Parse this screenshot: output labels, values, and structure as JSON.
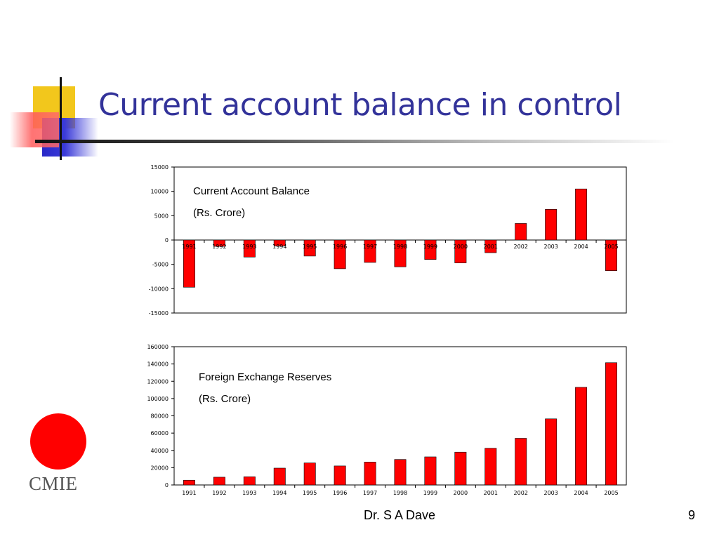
{
  "slide": {
    "title": "Current account balance in control",
    "author": "Dr. S A Dave",
    "page_number": "9",
    "logo_text": "CMIE"
  },
  "colors": {
    "title": "#33339a",
    "bar_fill": "#ff0000",
    "bar_stroke": "#000000",
    "logo_circle": "#ff0000",
    "deco_yellow": "#f2c71c",
    "deco_blue": "#2828c8",
    "deco_red": "#ff5b5b"
  },
  "chart_data": [
    {
      "type": "bar",
      "annotation": [
        "Current Account Balance",
        "(Rs. Crore)"
      ],
      "categories": [
        "1991",
        "1992",
        "1993",
        "1994",
        "1995",
        "1996",
        "1997",
        "1998",
        "1999",
        "2000",
        "2001",
        "2002",
        "2003",
        "2004",
        "2005"
      ],
      "values": [
        -9700,
        -1300,
        -3500,
        -1200,
        -3300,
        -5900,
        -4600,
        -5500,
        -4000,
        -4700,
        -2600,
        3400,
        6300,
        10500,
        -6300
      ],
      "ylim": [
        -15000,
        15000
      ],
      "yticks": [
        -15000,
        -10000,
        -5000,
        0,
        5000,
        10000,
        15000
      ],
      "xlabel": "",
      "ylabel": "",
      "legend": "none"
    },
    {
      "type": "bar",
      "annotation": [
        "Foreign Exchange Reserves",
        "(Rs. Crore)"
      ],
      "categories": [
        "1991",
        "1992",
        "1993",
        "1994",
        "1995",
        "1996",
        "1997",
        "1998",
        "1999",
        "2000",
        "2001",
        "2002",
        "2003",
        "2004",
        "2005"
      ],
      "values": [
        5500,
        9000,
        9500,
        19500,
        25500,
        22000,
        26500,
        29500,
        32500,
        38000,
        42500,
        54000,
        76500,
        113000,
        141500
      ],
      "ylim": [
        0,
        160000
      ],
      "yticks": [
        0,
        20000,
        40000,
        60000,
        80000,
        100000,
        120000,
        140000,
        160000
      ],
      "xlabel": "",
      "ylabel": "",
      "legend": "none"
    }
  ]
}
